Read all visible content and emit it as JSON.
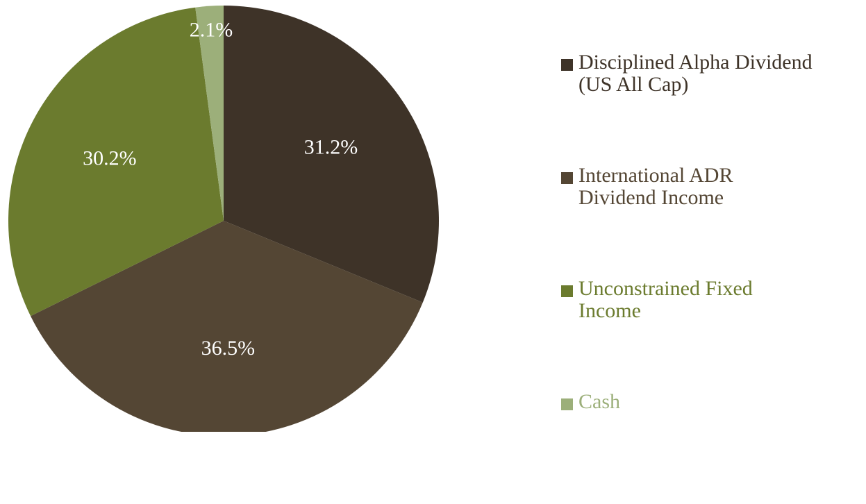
{
  "chart_data": {
    "type": "pie",
    "categories": [
      "Disciplined Alpha Dividend\n(US All Cap)",
      "International ADR\nDividend Income",
      "Unconstrained Fixed\nIncome",
      "Cash"
    ],
    "values": [
      31.2,
      36.5,
      30.2,
      2.1
    ],
    "value_labels": [
      "31.2%",
      "36.5%",
      "30.2%",
      "2.1%"
    ],
    "colors": [
      "#3e3328",
      "#544634",
      "#6b7b2e",
      "#9caf7a"
    ],
    "legend": "right"
  }
}
